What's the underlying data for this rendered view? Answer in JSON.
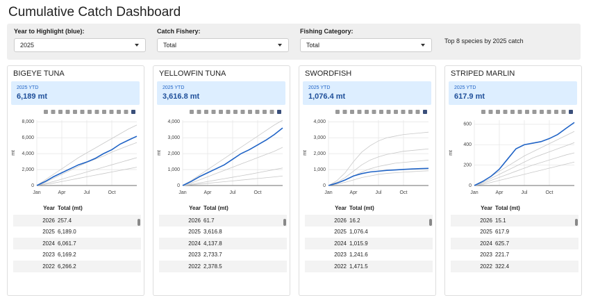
{
  "header": {
    "title": "Cumulative Catch Dashboard"
  },
  "controls": [
    {
      "label": "Year to Highlight (blue):",
      "value": "2025"
    },
    {
      "label": "Catch Fishery:",
      "value": "Total"
    },
    {
      "label": "Fishing Category:",
      "value": "Total"
    }
  ],
  "note": "Top 8 species by 2025 catch",
  "cards": [
    {
      "ytd_label": "2025 YTD",
      "ytd_value": "6,189 mt",
      "table": {
        "columns": [
          "Year",
          "Total (mt)"
        ],
        "rows": [
          [
            "2026",
            "257.4"
          ],
          [
            "2025",
            "6,189.0"
          ],
          [
            "2024",
            "6,061.7"
          ],
          [
            "2023",
            "6,169.2"
          ],
          [
            "2022",
            "6,266.2"
          ]
        ]
      }
    },
    {
      "ytd_label": "2025 YTD",
      "ytd_value": "3,616.8 mt",
      "table": {
        "columns": [
          "Year",
          "Total (mt)"
        ],
        "rows": [
          [
            "2026",
            "61.7"
          ],
          [
            "2025",
            "3,616.8"
          ],
          [
            "2024",
            "4,137.8"
          ],
          [
            "2023",
            "2,733.7"
          ],
          [
            "2022",
            "2,378.5"
          ]
        ]
      }
    },
    {
      "ytd_label": "2025 YTD",
      "ytd_value": "1,076.4 mt",
      "table": {
        "columns": [
          "Year",
          "Total (mt)"
        ],
        "rows": [
          [
            "2026",
            "16.2"
          ],
          [
            "2025",
            "1,076.4"
          ],
          [
            "2024",
            "1,015.9"
          ],
          [
            "2023",
            "1,241.6"
          ],
          [
            "2022",
            "1,471.5"
          ]
        ]
      }
    },
    {
      "ytd_label": "2025 YTD",
      "ytd_value": "617.9 mt",
      "table": {
        "columns": [
          "Year",
          "Total (mt)"
        ],
        "rows": [
          [
            "2026",
            "15.1"
          ],
          [
            "2025",
            "617.9"
          ],
          [
            "2024",
            "625.7"
          ],
          [
            "2023",
            "221.7"
          ],
          [
            "2022",
            "322.4"
          ]
        ]
      }
    }
  ],
  "chart_data": [
    {
      "type": "line",
      "title": "BIGEYE TUNA",
      "y_label": "mt",
      "x": [
        0,
        1,
        2,
        3,
        4,
        5,
        6,
        7,
        8,
        9,
        10,
        11,
        12
      ],
      "xlim": [
        0,
        12
      ],
      "xticks": [
        {
          "value": 0,
          "label": "Jan"
        },
        {
          "value": 3,
          "label": "Apr"
        },
        {
          "value": 6,
          "label": "Jul"
        },
        {
          "value": 9,
          "label": "Oct"
        }
      ],
      "ylim": [
        0,
        8200
      ],
      "yticks": [
        0,
        {
          "value": 2000,
          "label": "2,000"
        },
        {
          "value": 4000,
          "label": "4,000"
        },
        {
          "value": 6000,
          "label": "6,000"
        },
        {
          "value": 8000,
          "label": "8,000"
        }
      ],
      "grid": true,
      "series": [
        {
          "color": "#c8c8c8",
          "values": [
            0,
            700,
            1400,
            2100,
            2800,
            3500,
            4100,
            4700,
            5300,
            5900,
            6500,
            7100,
            7600
          ]
        },
        {
          "color": "#c8c8c8",
          "values": [
            0,
            400,
            900,
            1400,
            1900,
            2400,
            2900,
            3300,
            3700,
            4200,
            4600,
            5000,
            5400
          ]
        },
        {
          "color": "#c8c8c8",
          "values": [
            0,
            250,
            500,
            800,
            1100,
            1400,
            1700,
            2000,
            2300,
            2600,
            2900,
            3200,
            3500
          ]
        },
        {
          "color": "#c8c8c8",
          "values": [
            0,
            150,
            300,
            500,
            700,
            900,
            1100,
            1300,
            1500,
            1700,
            1900,
            2100,
            2300
          ]
        },
        {
          "color": "#1f63c6",
          "values": [
            0,
            500,
            1100,
            1600,
            2100,
            2600,
            2950,
            3400,
            4000,
            4500,
            5200,
            5700,
            6189
          ]
        }
      ]
    },
    {
      "type": "line",
      "title": "YELLOWFIN TUNA",
      "y_label": "mt",
      "x": [
        0,
        1,
        2,
        3,
        4,
        5,
        6,
        7,
        8,
        9,
        10,
        11,
        12
      ],
      "xlim": [
        0,
        12
      ],
      "xticks": [
        {
          "value": 0,
          "label": "Jan"
        },
        {
          "value": 3,
          "label": "Apr"
        },
        {
          "value": 6,
          "label": "Jul"
        },
        {
          "value": 9,
          "label": "Oct"
        }
      ],
      "ylim": [
        0,
        4100
      ],
      "yticks": [
        0,
        {
          "value": 1000,
          "label": "1,000"
        },
        {
          "value": 2000,
          "label": "2,000"
        },
        {
          "value": 3000,
          "label": "3,000"
        },
        {
          "value": 4000,
          "label": "4,000"
        }
      ],
      "grid": true,
      "series": [
        {
          "color": "#c8c8c8",
          "values": [
            0,
            300,
            650,
            1000,
            1350,
            1700,
            2050,
            2400,
            2750,
            3100,
            3450,
            3800,
            4100
          ]
        },
        {
          "color": "#c8c8c8",
          "values": [
            0,
            150,
            350,
            550,
            750,
            950,
            1150,
            1350,
            1550,
            1750,
            1950,
            2150,
            2400
          ]
        },
        {
          "color": "#c8c8c8",
          "values": [
            0,
            80,
            160,
            250,
            340,
            430,
            520,
            610,
            700,
            800,
            900,
            1000,
            1100
          ]
        },
        {
          "color": "#c8c8c8",
          "values": [
            0,
            40,
            90,
            140,
            190,
            240,
            290,
            340,
            390,
            440,
            490,
            540,
            600
          ]
        },
        {
          "color": "#1f63c6",
          "values": [
            0,
            250,
            550,
            800,
            1050,
            1300,
            1650,
            2000,
            2250,
            2550,
            2850,
            3200,
            3616.8
          ]
        }
      ]
    },
    {
      "type": "line",
      "title": "SWORDFISH",
      "y_label": "mt",
      "x": [
        0,
        1,
        2,
        3,
        4,
        5,
        6,
        7,
        8,
        9,
        10,
        11,
        12
      ],
      "xlim": [
        0,
        12
      ],
      "xticks": [
        {
          "value": 0,
          "label": "Jan"
        },
        {
          "value": 3,
          "label": "Apr"
        },
        {
          "value": 6,
          "label": "Jul"
        },
        {
          "value": 9,
          "label": "Oct"
        }
      ],
      "ylim": [
        0,
        4100
      ],
      "yticks": [
        0,
        {
          "value": 1000,
          "label": "1,000"
        },
        {
          "value": 2000,
          "label": "2,000"
        },
        {
          "value": 3000,
          "label": "3,000"
        },
        {
          "value": 4000,
          "label": "4,000"
        }
      ],
      "grid": true,
      "series": [
        {
          "color": "#c8c8c8",
          "values": [
            0,
            300,
            800,
            1500,
            2100,
            2500,
            2800,
            3000,
            3100,
            3200,
            3250,
            3300,
            3350
          ]
        },
        {
          "color": "#c8c8c8",
          "values": [
            0,
            200,
            500,
            900,
            1300,
            1600,
            1800,
            1950,
            2050,
            2150,
            2200,
            2250,
            2300
          ]
        },
        {
          "color": "#c8c8c8",
          "values": [
            0,
            150,
            350,
            600,
            850,
            1050,
            1200,
            1300,
            1400,
            1450,
            1500,
            1550,
            1600
          ]
        },
        {
          "color": "#c8c8c8",
          "values": [
            0,
            80,
            200,
            350,
            500,
            600,
            700,
            760,
            800,
            840,
            870,
            900,
            920
          ]
        },
        {
          "color": "#1f63c6",
          "values": [
            0,
            150,
            350,
            600,
            750,
            850,
            900,
            950,
            980,
            1010,
            1040,
            1060,
            1076.4
          ]
        }
      ]
    },
    {
      "type": "line",
      "title": "STRIPED MARLIN",
      "y_label": "mt",
      "x": [
        0,
        1,
        2,
        3,
        4,
        5,
        6,
        7,
        8,
        9,
        10,
        11,
        12
      ],
      "xlim": [
        0,
        12
      ],
      "xticks": [
        {
          "value": 0,
          "label": "Jan"
        },
        {
          "value": 3,
          "label": "Apr"
        },
        {
          "value": 6,
          "label": "Jul"
        },
        {
          "value": 9,
          "label": "Oct"
        }
      ],
      "ylim": [
        0,
        640
      ],
      "yticks": [
        0,
        200,
        400,
        600
      ],
      "grid": true,
      "series": [
        {
          "color": "#c8c8c8",
          "values": [
            0,
            40,
            90,
            140,
            190,
            240,
            290,
            330,
            370,
            410,
            450,
            490,
            530
          ]
        },
        {
          "color": "#c8c8c8",
          "values": [
            0,
            30,
            70,
            110,
            150,
            190,
            230,
            270,
            300,
            330,
            360,
            390,
            420
          ]
        },
        {
          "color": "#c8c8c8",
          "values": [
            0,
            20,
            50,
            80,
            110,
            140,
            170,
            200,
            225,
            250,
            275,
            300,
            320
          ]
        },
        {
          "color": "#c8c8c8",
          "values": [
            0,
            10,
            30,
            50,
            70,
            90,
            110,
            130,
            150,
            170,
            190,
            210,
            230
          ]
        },
        {
          "color": "#1f63c6",
          "values": [
            0,
            40,
            90,
            160,
            260,
            360,
            400,
            415,
            430,
            460,
            500,
            560,
            617.9
          ]
        }
      ]
    }
  ]
}
